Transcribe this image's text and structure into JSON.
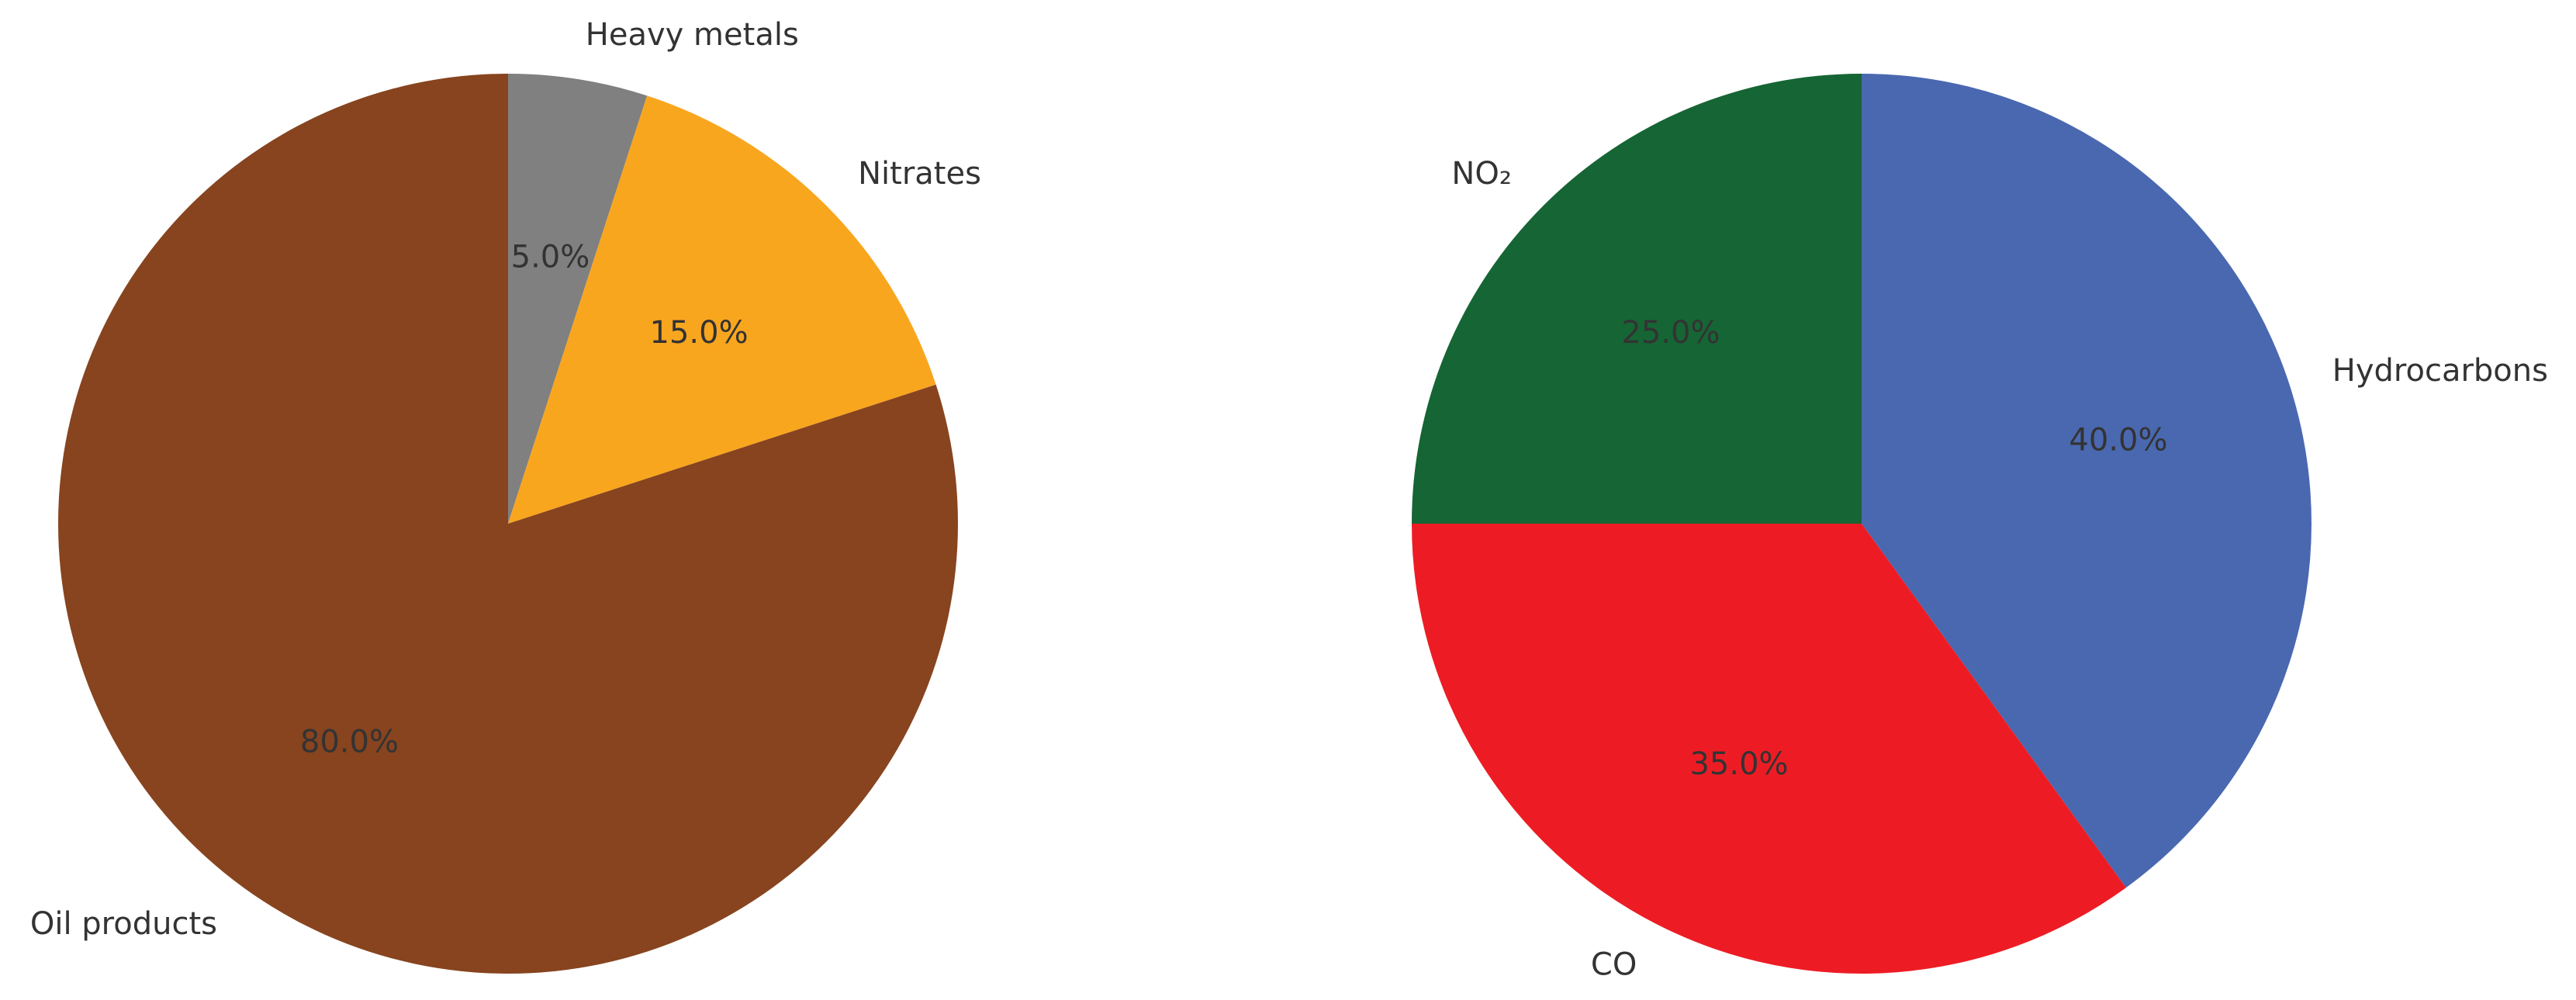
{
  "chart_data": [
    {
      "type": "pie",
      "slices": [
        {
          "label": "Heavy metals",
          "value": 5.0,
          "pct_text": "5.0%",
          "color": "#808080"
        },
        {
          "label": "Nitrates",
          "value": 15.0,
          "pct_text": "15.0%",
          "color": "#F9A61F"
        },
        {
          "label": "Oil products",
          "value": 80.0,
          "pct_text": "80.0%",
          "color": "#87441F"
        }
      ],
      "start": "top",
      "direction": "clockwise"
    },
    {
      "type": "pie",
      "slices": [
        {
          "label": "Hydrocarbons",
          "value": 40.0,
          "pct_text": "40.0%",
          "color": "#4A68B0"
        },
        {
          "label": "CO",
          "value": 35.0,
          "pct_text": "35.0%",
          "color": "#ED1C24"
        },
        {
          "label": "NO₂",
          "value": 25.0,
          "pct_text": "25.0%",
          "color": "#166534"
        }
      ],
      "start": "top",
      "direction": "clockwise"
    }
  ]
}
